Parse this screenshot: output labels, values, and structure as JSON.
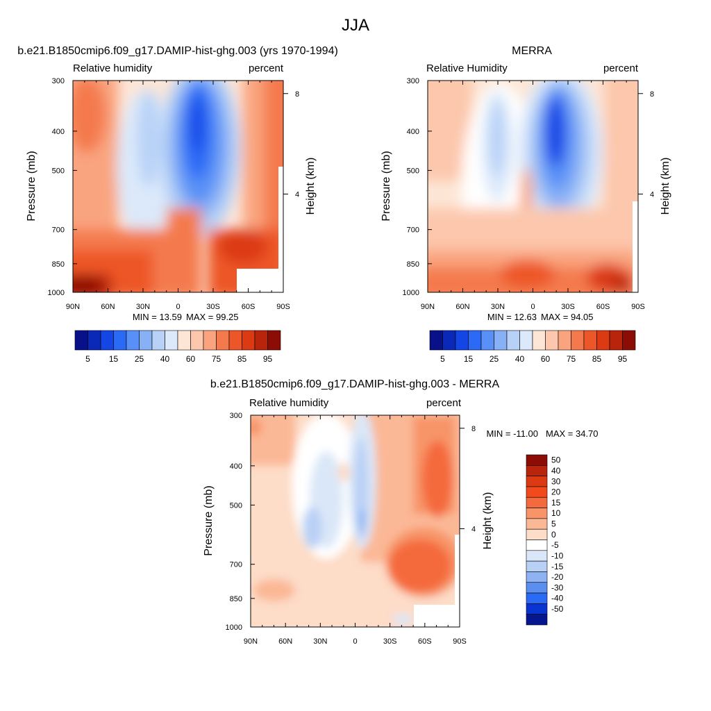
{
  "figure": {
    "title": "JJA"
  },
  "chart_data": [
    {
      "type": "heatmap",
      "title": "b.e21.B1850cmip6.f09_g17.DAMIP-hist-ghg.003 (yrs 1970-1994)",
      "left_string": "Relative humidity",
      "right_string": "percent",
      "ylabel": "Pressure (mb)",
      "ylabel_right": "Height (km)",
      "x_ticks": [
        "90N",
        "60N",
        "30N",
        "0",
        "30S",
        "60S",
        "90S"
      ],
      "y_ticks": [
        "300",
        "400",
        "500",
        "700",
        "850",
        "1000"
      ],
      "y_ticks_right": [
        "8",
        "4"
      ],
      "ylim": [
        1000,
        300
      ],
      "y_scale": "log",
      "min_label": "MIN =  13.59",
      "max_label": "MAX =  99.25",
      "colorbar": {
        "orientation": "horizontal",
        "labels": [
          "5",
          "15",
          "25",
          "40",
          "60",
          "75",
          "85",
          "95"
        ],
        "colors": [
          "#08108a",
          "#0a29b8",
          "#1446e6",
          "#2b6af5",
          "#5990f7",
          "#88b0f5",
          "#b8d2f7",
          "#dbe9fa",
          "#fde6d6",
          "#fcc7ac",
          "#f9a47f",
          "#f47a4e",
          "#ed5628",
          "#dc3a12",
          "#b8240c",
          "#8c0d05"
        ]
      }
    },
    {
      "type": "heatmap",
      "title": "MERRA",
      "left_string": "Relative Humidity",
      "right_string": "percent",
      "ylabel": "Pressure (mb)",
      "ylabel_right": "Height (km)",
      "x_ticks": [
        "90N",
        "60N",
        "30N",
        "0",
        "30S",
        "60S",
        "90S"
      ],
      "y_ticks": [
        "300",
        "400",
        "500",
        "700",
        "850",
        "1000"
      ],
      "y_ticks_right": [
        "8",
        "4"
      ],
      "ylim": [
        1000,
        300
      ],
      "y_scale": "log",
      "min_label": "MIN =  12.63",
      "max_label": "MAX =  94.05",
      "colorbar": {
        "orientation": "horizontal",
        "labels": [
          "5",
          "15",
          "25",
          "40",
          "60",
          "75",
          "85",
          "95"
        ],
        "colors": [
          "#08108a",
          "#0a29b8",
          "#1446e6",
          "#2b6af5",
          "#5990f7",
          "#88b0f5",
          "#b8d2f7",
          "#dbe9fa",
          "#fde6d6",
          "#fcc7ac",
          "#f9a47f",
          "#f47a4e",
          "#ed5628",
          "#dc3a12",
          "#b8240c",
          "#8c0d05"
        ]
      }
    },
    {
      "type": "heatmap",
      "title": "b.e21.B1850cmip6.f09_g17.DAMIP-hist-ghg.003 - MERRA",
      "left_string": "Relative humidity",
      "right_string": "percent",
      "ylabel": "Pressure (mb)",
      "ylabel_right": "Height (km)",
      "x_ticks": [
        "90N",
        "60N",
        "30N",
        "0",
        "30S",
        "60S",
        "90S"
      ],
      "y_ticks": [
        "300",
        "400",
        "500",
        "700",
        "850",
        "1000"
      ],
      "y_ticks_right": [
        "8",
        "4"
      ],
      "ylim": [
        1000,
        300
      ],
      "y_scale": "log",
      "min_label": "MIN = -11.00",
      "max_label": "MAX =  34.70",
      "colorbar": {
        "orientation": "vertical",
        "labels": [
          "50",
          "40",
          "30",
          "20",
          "15",
          "10",
          "5",
          "0",
          "-5",
          "-10",
          "-15",
          "-20",
          "-30",
          "-40",
          "-50"
        ],
        "colors": [
          "#8c0d05",
          "#b8240c",
          "#dc3a12",
          "#f24a1c",
          "#f46a3c",
          "#f79468",
          "#fbb896",
          "#fddcc8",
          "#ffffff",
          "#dae7f8",
          "#b9d0f5",
          "#8fb2f2",
          "#5a8ff0",
          "#2b6af5",
          "#0a34d0",
          "#06168f"
        ]
      }
    }
  ]
}
